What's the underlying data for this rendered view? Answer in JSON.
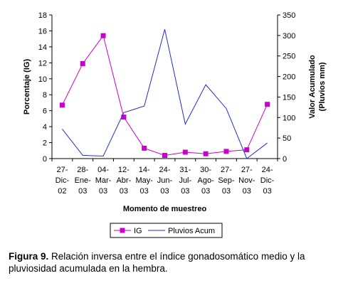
{
  "chart_data": {
    "type": "line",
    "categories": [
      [
        "27-",
        "Dic-",
        "02"
      ],
      [
        "28-",
        "Ene-",
        "03"
      ],
      [
        "04-",
        "Mar-",
        "03"
      ],
      [
        "12-",
        "Abr-",
        "03"
      ],
      [
        "14-",
        "May-",
        "03"
      ],
      [
        "24-",
        "Jun-",
        "03"
      ],
      [
        "31-",
        "Jul-",
        "03"
      ],
      [
        "30-",
        "Ago-",
        "03"
      ],
      [
        "27-",
        "Sep-",
        "03"
      ],
      [
        "27-",
        "Nov-",
        "03"
      ],
      [
        "24-",
        "Dic-",
        "03"
      ]
    ],
    "xlabel": "Momento de muestreo",
    "ylabel_left": "Porcentaje (IG)",
    "ylabel_right": [
      "Valor Acumulado",
      "(Pluvios mm)"
    ],
    "ylim_left": [
      0,
      18
    ],
    "yticks_left": [
      0,
      2,
      4,
      6,
      8,
      10,
      12,
      14,
      16,
      18
    ],
    "ylim_right": [
      0,
      350
    ],
    "yticks_right": [
      0,
      50,
      100,
      150,
      200,
      250,
      300,
      350
    ],
    "series": [
      {
        "name": "IG",
        "axis": "left",
        "color": "#cc00cc",
        "marker": "square",
        "values": [
          6.7,
          11.9,
          15.4,
          5.2,
          1.3,
          0.4,
          0.8,
          0.6,
          0.9,
          1.1,
          6.8
        ]
      },
      {
        "name": "Pluvios Acum",
        "axis": "right",
        "color": "#1f2dcc",
        "marker": "none",
        "values": [
          72,
          8,
          6,
          112,
          128,
          315,
          84,
          180,
          122,
          0,
          38
        ]
      }
    ],
    "legend": "bottom-center",
    "grid": false
  },
  "caption": {
    "label": "Figura 9.",
    "text": " Relación inversa entre el índice gonadosomático medio y la pluviosidad acumulada en la hembra."
  }
}
